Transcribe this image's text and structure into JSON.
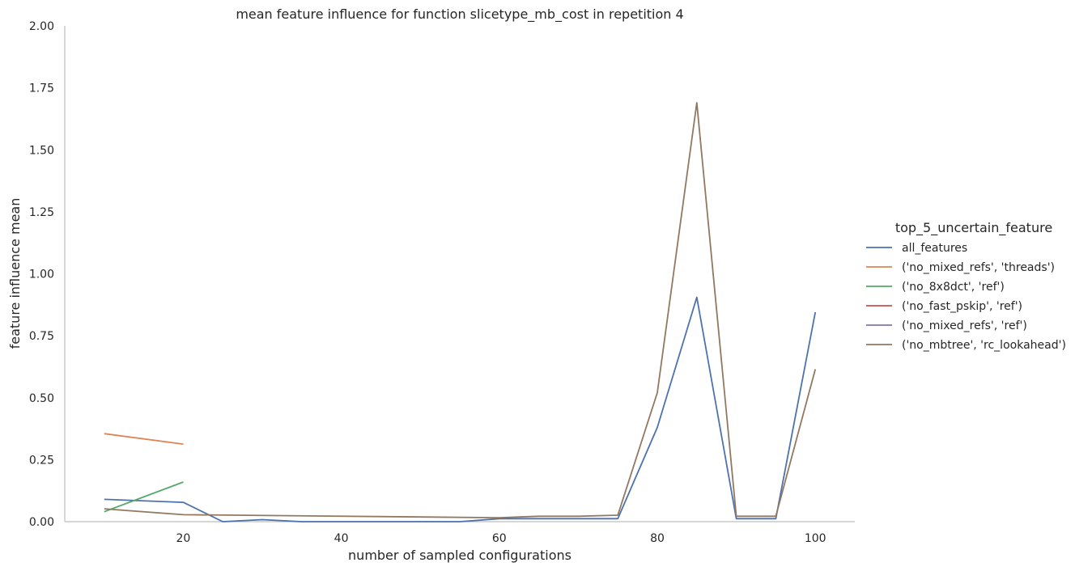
{
  "chart_data": {
    "type": "line",
    "title": "mean feature influence for function slicetype_mb_cost in repetition 4",
    "xlabel": "number of sampled configurations",
    "ylabel": "feature influence mean",
    "xlim": [
      5,
      105
    ],
    "ylim": [
      0,
      2.0
    ],
    "xticks": [
      20,
      40,
      60,
      80,
      100
    ],
    "xtick_labels": [
      "20",
      "40",
      "60",
      "80",
      "100"
    ],
    "yticks": [
      0,
      0.25,
      0.5,
      0.75,
      1.0,
      1.25,
      1.5,
      1.75,
      2.0
    ],
    "ytick_labels": [
      "0.00",
      "0.25",
      "0.50",
      "0.75",
      "1.00",
      "1.25",
      "1.50",
      "1.75",
      "2.00"
    ],
    "grid": false,
    "legend": {
      "title": "top_5_uncertain_feature",
      "position": "right"
    },
    "series": [
      {
        "name": "all_features",
        "color": "#4c72b0",
        "points": [
          [
            10,
            0.09
          ],
          [
            20,
            0.078
          ],
          [
            25,
            0.0
          ],
          [
            30,
            0.008
          ],
          [
            35,
            0.0
          ],
          [
            55,
            0.0
          ],
          [
            60,
            0.012
          ],
          [
            65,
            0.012
          ],
          [
            70,
            0.012
          ],
          [
            75,
            0.012
          ],
          [
            80,
            0.38
          ],
          [
            85,
            0.905
          ],
          [
            90,
            0.012
          ],
          [
            95,
            0.012
          ],
          [
            100,
            0.845
          ]
        ]
      },
      {
        "name": "('no_mixed_refs', 'threads')",
        "color": "#dd8452",
        "points": [
          [
            10,
            0.355
          ],
          [
            20,
            0.313
          ]
        ]
      },
      {
        "name": "('no_8x8dct', 'ref')",
        "color": "#55a868",
        "points": [
          [
            10,
            0.04
          ],
          [
            20,
            0.16
          ]
        ]
      },
      {
        "name": "('no_fast_pskip', 'ref')",
        "color": "#c44e52",
        "points": []
      },
      {
        "name": "('no_mixed_refs', 'ref')",
        "color": "#8172b3",
        "points": []
      },
      {
        "name": "('no_mbtree', 'rc_lookahead')",
        "color": "#937860",
        "points": [
          [
            10,
            0.052
          ],
          [
            20,
            0.028
          ],
          [
            60,
            0.016
          ],
          [
            65,
            0.022
          ],
          [
            70,
            0.022
          ],
          [
            75,
            0.026
          ],
          [
            80,
            0.52
          ],
          [
            85,
            1.69
          ],
          [
            90,
            0.022
          ],
          [
            95,
            0.022
          ],
          [
            100,
            0.615
          ]
        ]
      }
    ]
  }
}
